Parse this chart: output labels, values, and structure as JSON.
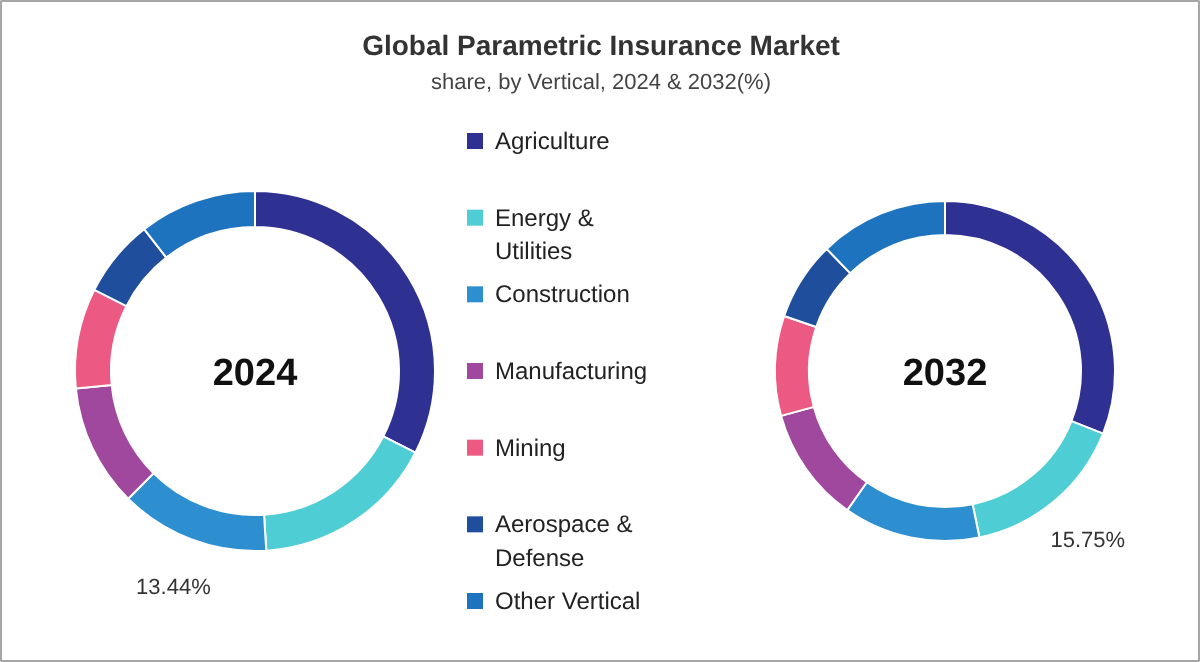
{
  "chart_data": {
    "type": "donut",
    "title": "Global Parametric Insurance Market",
    "subtitle": "share, by Vertical, 2024 & 2032(%)",
    "legend": "right",
    "categories": [
      "Agriculture",
      "Energy & Utilities",
      "Construction",
      "Manufacturing",
      "Mining",
      "Aerospace & Defense",
      "Other Vertical"
    ],
    "colors": [
      "#2e3192",
      "#4ecdd4",
      "#2e8fd0",
      "#a0479e",
      "#ec5a84",
      "#1f4e9c",
      "#1e73be"
    ],
    "series": [
      {
        "name": "2024",
        "values": [
          32.5,
          16.5,
          13.44,
          11,
          9,
          7,
          10.56
        ],
        "value_labels": [
          null,
          null,
          "13.44%",
          null,
          null,
          null,
          null
        ]
      },
      {
        "name": "2032",
        "values": [
          31,
          15.75,
          13,
          11,
          9.5,
          7.5,
          12.25
        ],
        "value_labels": [
          null,
          "15.75%",
          null,
          null,
          null,
          null,
          null
        ]
      }
    ]
  }
}
